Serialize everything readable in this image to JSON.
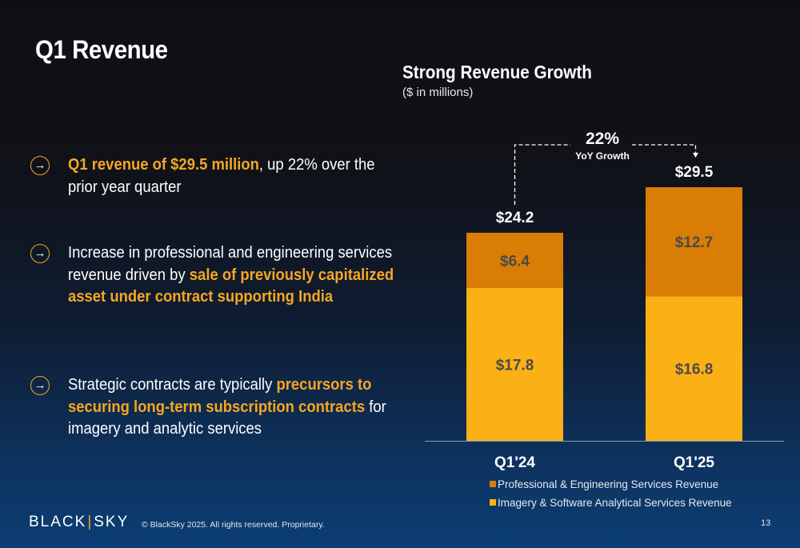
{
  "slide": {
    "title": "Q1 Revenue",
    "page_number": "13",
    "copyright": "© BlackSky 2025. All rights reserved. Proprietary.",
    "logo": {
      "left": "BLACK",
      "sep": "|",
      "right": "SKY"
    },
    "arrow_glyph": "→"
  },
  "bullets": [
    {
      "parts": [
        {
          "text": "Q1 revenue of $29.5 million",
          "highlight": true
        },
        {
          "text": ", up 22% over the prior year quarter",
          "highlight": false
        }
      ]
    },
    {
      "parts": [
        {
          "text": "Increase in professional and engineering services revenue driven by ",
          "highlight": false
        },
        {
          "text": "sale of previously capitalized asset under contract supporting India",
          "highlight": true
        }
      ]
    },
    {
      "parts": [
        {
          "text": "Strategic contracts are typically ",
          "highlight": false
        },
        {
          "text": "precursors to securing long-term subscription contracts",
          "highlight": true
        },
        {
          "text": " for imagery and analytic services",
          "highlight": false
        }
      ]
    }
  ],
  "chart_data": {
    "type": "bar",
    "stacked": true,
    "title": "Strong Revenue Growth",
    "subtitle": "($ in millions)",
    "categories": [
      "Q1'24",
      "Q1'25"
    ],
    "series": [
      {
        "name": "Imagery & Software Analytical Services Revenue",
        "values": [
          17.8,
          16.8
        ],
        "labels": [
          "$17.8",
          "$16.8"
        ],
        "color": "#fbb116"
      },
      {
        "name": "Professional & Engineering Services Revenue",
        "values": [
          6.4,
          12.7
        ],
        "labels": [
          "$6.4",
          "$12.7"
        ],
        "color": "#d97d05"
      }
    ],
    "totals": [
      24.2,
      29.5
    ],
    "total_labels": [
      "$24.2",
      "$29.5"
    ],
    "ylim": [
      0,
      29.5
    ],
    "growth_annotation": {
      "value": "22%",
      "label": "YoY Growth"
    },
    "legend_order": [
      1,
      0
    ],
    "legend_position": "bottom",
    "grid": false,
    "colors": {
      "label_dark": "#4a4a4a",
      "axis": "#8a9bb5",
      "text": "#ffffff"
    }
  }
}
